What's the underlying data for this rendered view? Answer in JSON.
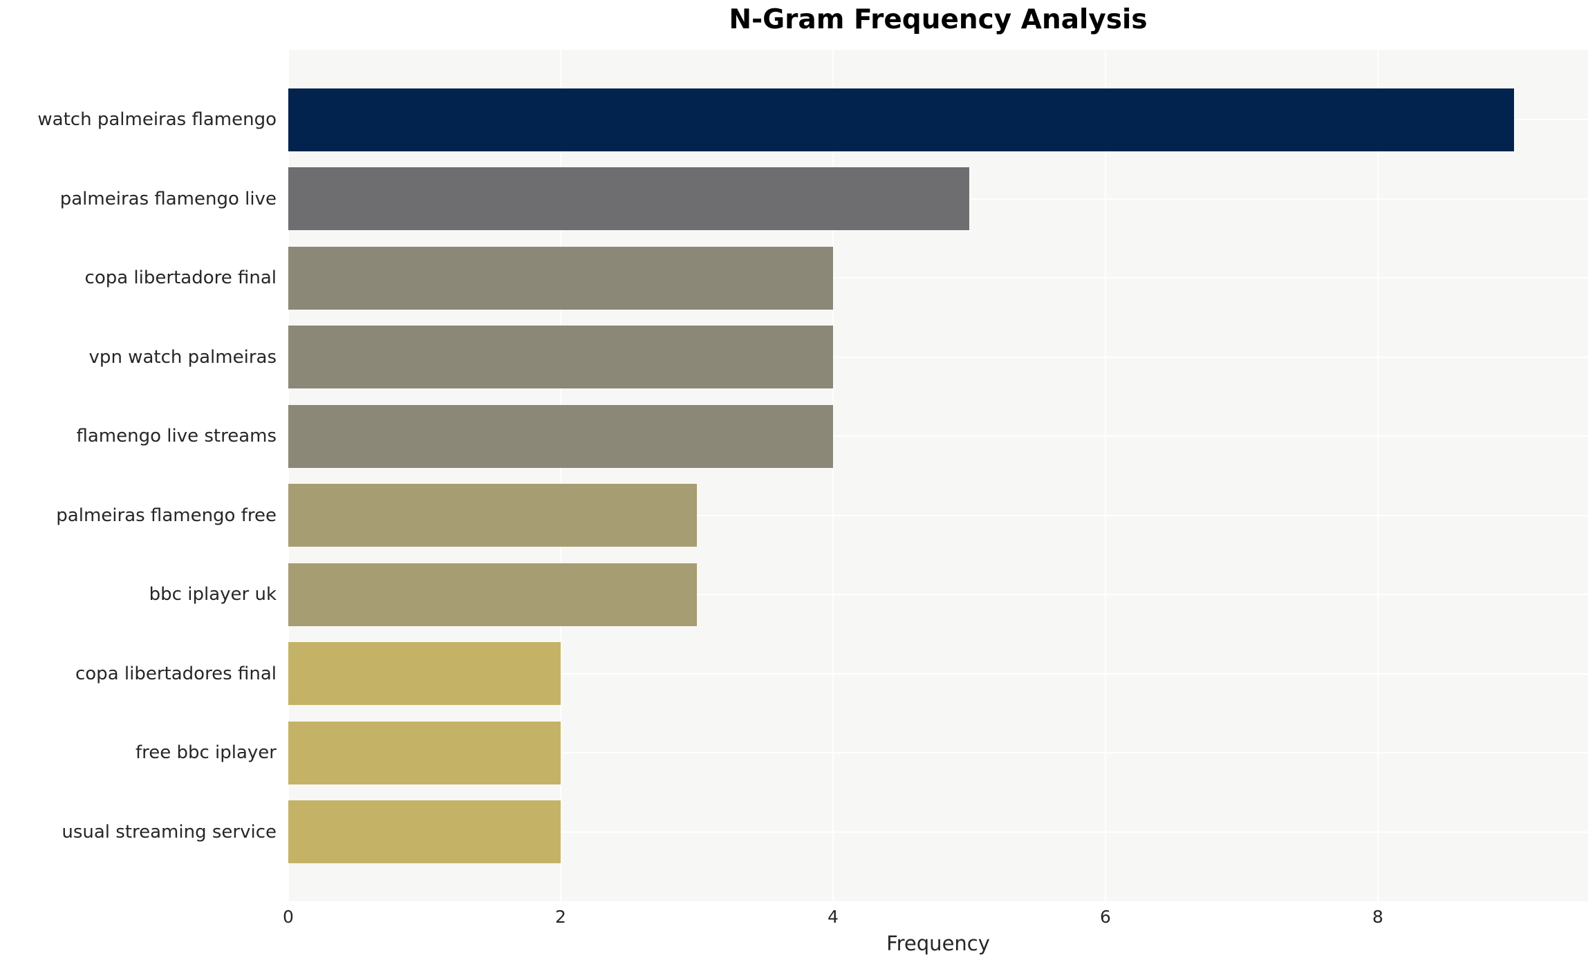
{
  "chart_data": {
    "type": "bar",
    "orientation": "horizontal",
    "title": "N-Gram Frequency Analysis",
    "xlabel": "Frequency",
    "ylabel": "",
    "categories": [
      "watch palmeiras flamengo",
      "palmeiras flamengo live",
      "copa libertadore final",
      "vpn watch palmeiras",
      "flamengo live streams",
      "palmeiras flamengo free",
      "bbc iplayer uk",
      "copa libertadores final",
      "free bbc iplayer",
      "usual streaming service"
    ],
    "values": [
      9,
      5,
      4,
      4,
      4,
      3,
      3,
      2,
      2,
      2
    ],
    "bar_colors": [
      "#02234e",
      "#6e6e70",
      "#8b8878",
      "#8b8878",
      "#8b8878",
      "#a79d72",
      "#a79d72",
      "#c4b366",
      "#c4b366",
      "#c4b366"
    ],
    "xticks": [
      0,
      2,
      4,
      6,
      8
    ],
    "xlim": [
      0,
      9.54
    ],
    "grid": true,
    "legend": "none",
    "plot_background": "#f7f7f6",
    "grid_color": "#ffffff",
    "text_color": "#262626",
    "title_color": "#000000"
  }
}
